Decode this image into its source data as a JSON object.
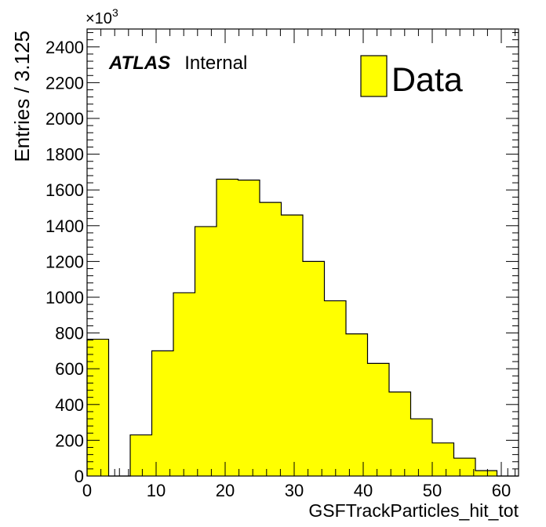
{
  "chart_data": {
    "type": "bar",
    "xlabel": "GSFTrackParticles_hit_tot",
    "ylabel": "Entries / 3.125",
    "y_exponent_base": "×10",
    "y_exponent_power": "3",
    "xlim": [
      0,
      62.5
    ],
    "ylim": [
      0,
      2500
    ],
    "xticks": [
      0,
      10,
      20,
      30,
      40,
      50,
      60
    ],
    "yticks": [
      0,
      200,
      400,
      600,
      800,
      1000,
      1200,
      1400,
      1600,
      1800,
      2000,
      2200,
      2400
    ],
    "bin_width": 3.125,
    "bin_edges_start": 0,
    "values": [
      765,
      0,
      230,
      700,
      1025,
      1395,
      1660,
      1655,
      1530,
      1460,
      1200,
      980,
      795,
      630,
      470,
      320,
      185,
      100,
      30,
      0
    ],
    "fill_color": "#ffff00",
    "edge_color": "#000000",
    "grid": false,
    "legend": {
      "position": "top-right",
      "entries": [
        {
          "label": "Data",
          "color": "#ffff00"
        }
      ]
    },
    "annotation": {
      "bold": "ATLAS",
      "normal": "Internal"
    }
  }
}
